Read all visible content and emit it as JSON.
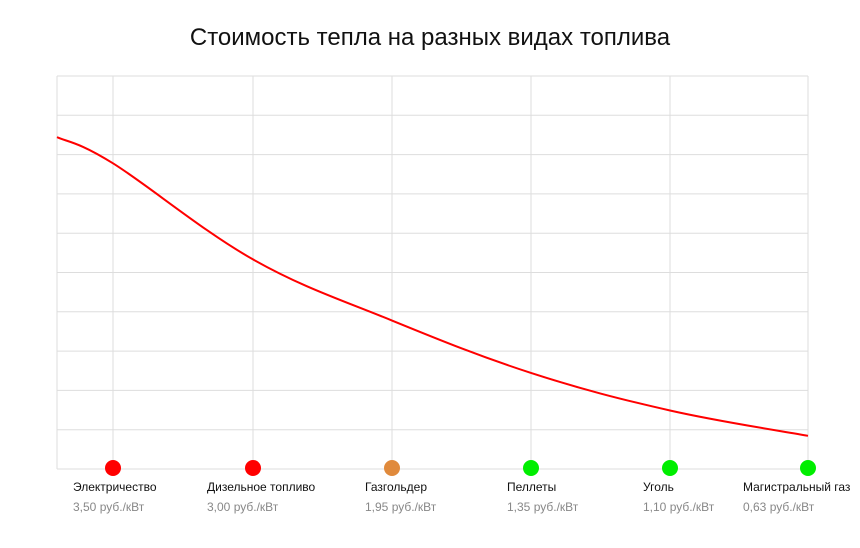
{
  "chart_data": {
    "type": "line",
    "title": "Стоимость тепла на разных видах топлива",
    "xlabel": "",
    "ylabel": "",
    "grid": true,
    "ylim": [
      0,
      4.5
    ],
    "categories": [
      "Электричество",
      "Дизельное топливо",
      "Газгольдер",
      "Пеллеты",
      "Уголь",
      "Магистральный газ"
    ],
    "value_labels": [
      "3,50 руб./кВт",
      "3,00 руб./кВт",
      "1,95 руб./кВт",
      "1,35 руб./кВт",
      "1,10 руб./кВт",
      "0,63 руб./кВт"
    ],
    "values": [
      3.5,
      3.0,
      1.95,
      1.35,
      1.1,
      0.63
    ],
    "line_values": [
      3.5,
      2.4,
      1.7,
      1.1,
      0.67,
      0.38
    ],
    "line_start_value": 3.8,
    "marker_colors": [
      "#ff0000",
      "#ff0000",
      "#e08a3c",
      "#00ee00",
      "#00ee00",
      "#00ee00"
    ],
    "line_color": "#ff0000",
    "grid_color": "#dddddd"
  }
}
